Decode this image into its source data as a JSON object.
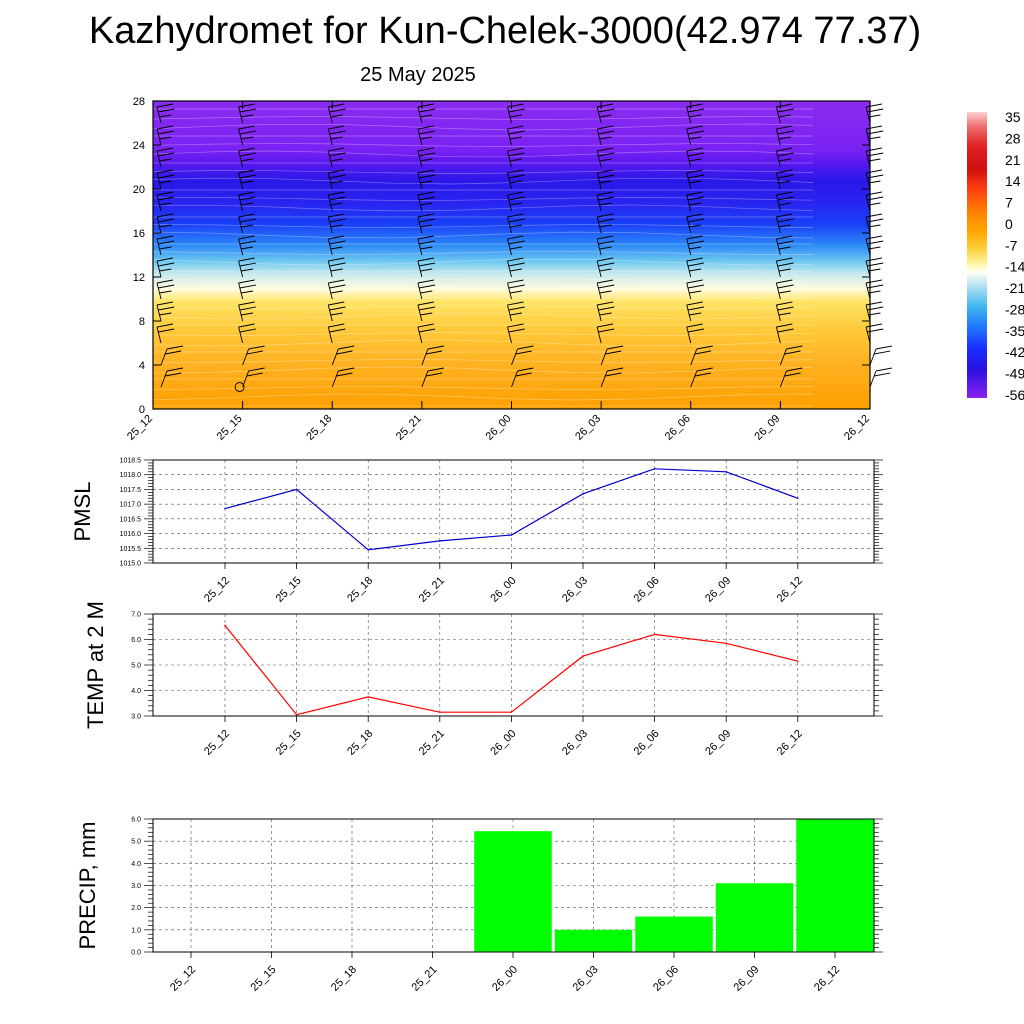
{
  "header": {
    "title": "Kazhydromet for Kun-Chelek-3000(42.974 77.37)",
    "subtitle": "25 May 2025"
  },
  "chart_data": [
    {
      "type": "heatmap",
      "x_ticks": [
        "25_12",
        "25_15",
        "25_18",
        "25_21",
        "26_00",
        "26_03",
        "26_06",
        "26_09",
        "26_12"
      ],
      "y_ticks": [
        "0",
        "4",
        "8",
        "12",
        "16",
        "20",
        "24",
        "28"
      ],
      "ylim": [
        0,
        28
      ],
      "colorbar": {
        "labels": [
          "35",
          "28",
          "21",
          "14",
          "7",
          "0",
          "-7",
          "-14",
          "-21",
          "-28",
          "-35",
          "-42",
          "-49",
          "-56"
        ],
        "colors": [
          "#fbd0d0",
          "#f04040",
          "#d21010",
          "#ff3c10",
          "#ff7a00",
          "#ffa800",
          "#ffe060",
          "#fffff0",
          "#a8dcf0",
          "#3cb8f0",
          "#1f78ff",
          "#1a2cff",
          "#2a12e0",
          "#8018f0"
        ]
      },
      "wind_barbs": true
    },
    {
      "type": "line",
      "ylabel": "PMSL",
      "categories": [
        "25_12",
        "25_15",
        "25_18",
        "25_21",
        "26_00",
        "26_03",
        "26_06",
        "26_09",
        "26_12"
      ],
      "values": [
        1016.85,
        1017.5,
        1015.45,
        1015.75,
        1015.95,
        1017.35,
        1018.2,
        1018.1,
        1017.2
      ],
      "ylim": [
        1015.0,
        1018.5
      ],
      "y_ticks": [
        "1015.0",
        "1015.5",
        "1016.0",
        "1016.5",
        "1017.0",
        "1017.5",
        "1018.0",
        "1018.5"
      ],
      "color": "#0000cc",
      "grid": true
    },
    {
      "type": "line",
      "ylabel": "TEMP at 2 M",
      "categories": [
        "25_12",
        "25_15",
        "25_18",
        "25_21",
        "26_00",
        "26_03",
        "26_06",
        "26_09",
        "26_12"
      ],
      "values": [
        6.55,
        3.05,
        3.75,
        3.15,
        3.15,
        5.35,
        6.2,
        5.85,
        5.15
      ],
      "ylim": [
        3.0,
        7.0
      ],
      "y_ticks": [
        "3.0",
        "4.0",
        "5.0",
        "6.0",
        "7.0"
      ],
      "color": "#ff0000",
      "grid": true
    },
    {
      "type": "bar",
      "ylabel": "PRECIP, mm",
      "categories": [
        "25_12",
        "25_15",
        "25_18",
        "25_21",
        "26_00",
        "26_03",
        "26_06",
        "26_09",
        "26_12"
      ],
      "values": [
        0,
        0,
        0,
        0,
        5.45,
        1.0,
        1.6,
        3.1,
        6.0
      ],
      "ylim": [
        0.0,
        6.0
      ],
      "y_ticks": [
        "0.0",
        "1.0",
        "2.0",
        "3.0",
        "4.0",
        "5.0",
        "6.0"
      ],
      "color": "#00ff00",
      "grid": true
    }
  ]
}
